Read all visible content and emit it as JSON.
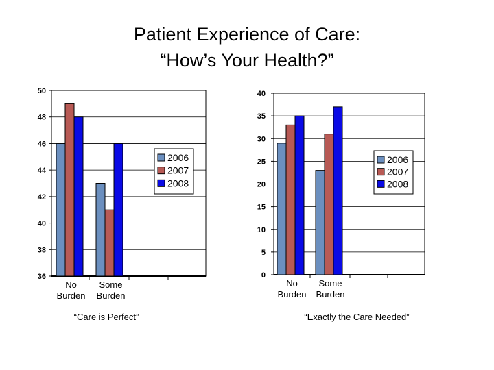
{
  "slide": {
    "title_line1": "Patient Experience of Care:",
    "title_line2": "“How’s Your Health?”"
  },
  "colors": {
    "2006": "#6b8fbf",
    "2007": "#b85a55",
    "2008": "#0a0ae6"
  },
  "chart_data": [
    {
      "type": "bar",
      "caption": "“Care is Perfect”",
      "categories": [
        [
          "No",
          "Burden"
        ],
        [
          "Some",
          "Burden"
        ]
      ],
      "series": [
        {
          "name": "2006",
          "values": [
            46,
            43
          ]
        },
        {
          "name": "2007",
          "values": [
            49,
            41
          ]
        },
        {
          "name": "2008",
          "values": [
            48,
            46
          ]
        }
      ],
      "ylim": [
        36,
        50
      ],
      "yticks": [
        36,
        38,
        40,
        42,
        44,
        46,
        48,
        50
      ],
      "legend": [
        "2006",
        "2007",
        "2008"
      ],
      "legend_position": "right",
      "grid": true
    },
    {
      "type": "bar",
      "caption": "“Exactly the Care Needed”",
      "categories": [
        [
          "No",
          "Burden"
        ],
        [
          "Some",
          "Burden"
        ]
      ],
      "series": [
        {
          "name": "2006",
          "values": [
            29,
            23
          ]
        },
        {
          "name": "2007",
          "values": [
            33,
            31
          ]
        },
        {
          "name": "2008",
          "values": [
            35,
            37
          ]
        }
      ],
      "ylim": [
        0,
        40
      ],
      "yticks": [
        0,
        5,
        10,
        15,
        20,
        25,
        30,
        35,
        40
      ],
      "legend": [
        "2006",
        "2007",
        "2008"
      ],
      "legend_position": "right",
      "grid": true
    }
  ]
}
